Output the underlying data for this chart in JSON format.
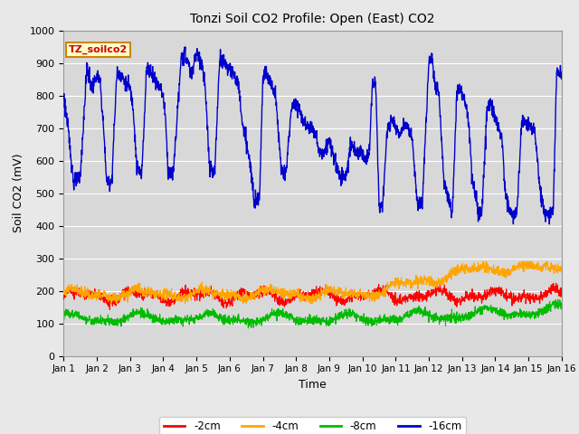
{
  "title": "Tonzi Soil CO2 Profile: Open (East) CO2",
  "ylabel": "Soil CO2 (mV)",
  "xlabel": "Time",
  "ylim": [
    0,
    1000
  ],
  "xlim": [
    0,
    15
  ],
  "xtick_labels": [
    "Jan 1",
    "Jan 2",
    "Jan 3",
    "Jan 4",
    "Jan 5",
    "Jan 6",
    "Jan 7",
    "Jan 8",
    "Jan 9",
    "Jan 10",
    "Jan 11",
    "Jan 12",
    "Jan 13",
    "Jan 14",
    "Jan 15",
    "Jan 16"
  ],
  "ytick_vals": [
    0,
    100,
    200,
    300,
    400,
    500,
    600,
    700,
    800,
    900,
    1000
  ],
  "grid_color": "#ffffff",
  "bg_color": "#d8d8d8",
  "fig_bg_color": "#e8e8e8",
  "colors": {
    "2cm": "#ff0000",
    "4cm": "#ffa500",
    "8cm": "#00bb00",
    "16cm": "#0000cc"
  },
  "legend_labels": [
    "-2cm",
    "-4cm",
    "-8cm",
    "-16cm"
  ],
  "legend_colors": [
    "#ff0000",
    "#ffa500",
    "#00bb00",
    "#0000cc"
  ],
  "watermark_text": "TZ_soilco2",
  "watermark_color": "#cc0000",
  "watermark_bg": "#ffffcc",
  "watermark_border": "#cc8800",
  "blue_keypoints": [
    [
      0.0,
      800
    ],
    [
      0.15,
      680
    ],
    [
      0.3,
      530
    ],
    [
      0.5,
      550
    ],
    [
      0.7,
      890
    ],
    [
      0.85,
      820
    ],
    [
      1.0,
      860
    ],
    [
      1.1,
      840
    ],
    [
      1.2,
      700
    ],
    [
      1.3,
      530
    ],
    [
      1.45,
      540
    ],
    [
      1.6,
      870
    ],
    [
      1.75,
      860
    ],
    [
      1.85,
      840
    ],
    [
      2.0,
      820
    ],
    [
      2.1,
      760
    ],
    [
      2.2,
      580
    ],
    [
      2.35,
      555
    ],
    [
      2.5,
      890
    ],
    [
      2.65,
      870
    ],
    [
      2.8,
      840
    ],
    [
      2.95,
      820
    ],
    [
      3.05,
      760
    ],
    [
      3.15,
      560
    ],
    [
      3.3,
      560
    ],
    [
      3.45,
      780
    ],
    [
      3.55,
      920
    ],
    [
      3.65,
      925
    ],
    [
      3.75,
      900
    ],
    [
      3.85,
      860
    ],
    [
      3.95,
      920
    ],
    [
      4.05,
      925
    ],
    [
      4.15,
      900
    ],
    [
      4.25,
      840
    ],
    [
      4.4,
      570
    ],
    [
      4.55,
      560
    ],
    [
      4.7,
      920
    ],
    [
      4.85,
      900
    ],
    [
      5.0,
      880
    ],
    [
      5.15,
      860
    ],
    [
      5.25,
      840
    ],
    [
      5.4,
      700
    ],
    [
      5.55,
      630
    ],
    [
      5.65,
      560
    ],
    [
      5.75,
      480
    ],
    [
      5.9,
      490
    ],
    [
      6.0,
      860
    ],
    [
      6.1,
      870
    ],
    [
      6.2,
      850
    ],
    [
      6.3,
      820
    ],
    [
      6.4,
      790
    ],
    [
      6.55,
      570
    ],
    [
      6.7,
      560
    ],
    [
      6.85,
      760
    ],
    [
      7.0,
      780
    ],
    [
      7.1,
      760
    ],
    [
      7.2,
      730
    ],
    [
      7.35,
      700
    ],
    [
      7.45,
      710
    ],
    [
      7.6,
      680
    ],
    [
      7.7,
      620
    ],
    [
      7.85,
      630
    ],
    [
      8.0,
      660
    ],
    [
      8.15,
      610
    ],
    [
      8.3,
      550
    ],
    [
      8.5,
      550
    ],
    [
      8.65,
      650
    ],
    [
      8.8,
      630
    ],
    [
      9.0,
      620
    ],
    [
      9.1,
      600
    ],
    [
      9.2,
      620
    ],
    [
      9.3,
      835
    ],
    [
      9.4,
      840
    ],
    [
      9.5,
      460
    ],
    [
      9.6,
      455
    ],
    [
      9.75,
      700
    ],
    [
      9.9,
      720
    ],
    [
      10.0,
      700
    ],
    [
      10.1,
      680
    ],
    [
      10.2,
      700
    ],
    [
      10.3,
      710
    ],
    [
      10.4,
      700
    ],
    [
      10.5,
      660
    ],
    [
      10.65,
      470
    ],
    [
      10.8,
      460
    ],
    [
      11.0,
      900
    ],
    [
      11.1,
      910
    ],
    [
      11.2,
      820
    ],
    [
      11.3,
      820
    ],
    [
      11.45,
      540
    ],
    [
      11.6,
      480
    ],
    [
      11.7,
      430
    ],
    [
      11.85,
      820
    ],
    [
      11.95,
      820
    ],
    [
      12.0,
      800
    ],
    [
      12.1,
      780
    ],
    [
      12.2,
      720
    ],
    [
      12.3,
      560
    ],
    [
      12.4,
      490
    ],
    [
      12.5,
      440
    ],
    [
      12.6,
      440
    ],
    [
      12.75,
      760
    ],
    [
      12.85,
      780
    ],
    [
      13.0,
      735
    ],
    [
      13.1,
      700
    ],
    [
      13.2,
      680
    ],
    [
      13.3,
      500
    ],
    [
      13.45,
      440
    ],
    [
      13.55,
      430
    ],
    [
      13.65,
      440
    ],
    [
      13.8,
      720
    ],
    [
      13.9,
      720
    ],
    [
      14.0,
      710
    ],
    [
      14.1,
      700
    ],
    [
      14.2,
      680
    ],
    [
      14.35,
      510
    ],
    [
      14.5,
      430
    ],
    [
      14.65,
      440
    ],
    [
      14.75,
      450
    ],
    [
      14.85,
      870
    ],
    [
      15.0,
      870
    ]
  ]
}
